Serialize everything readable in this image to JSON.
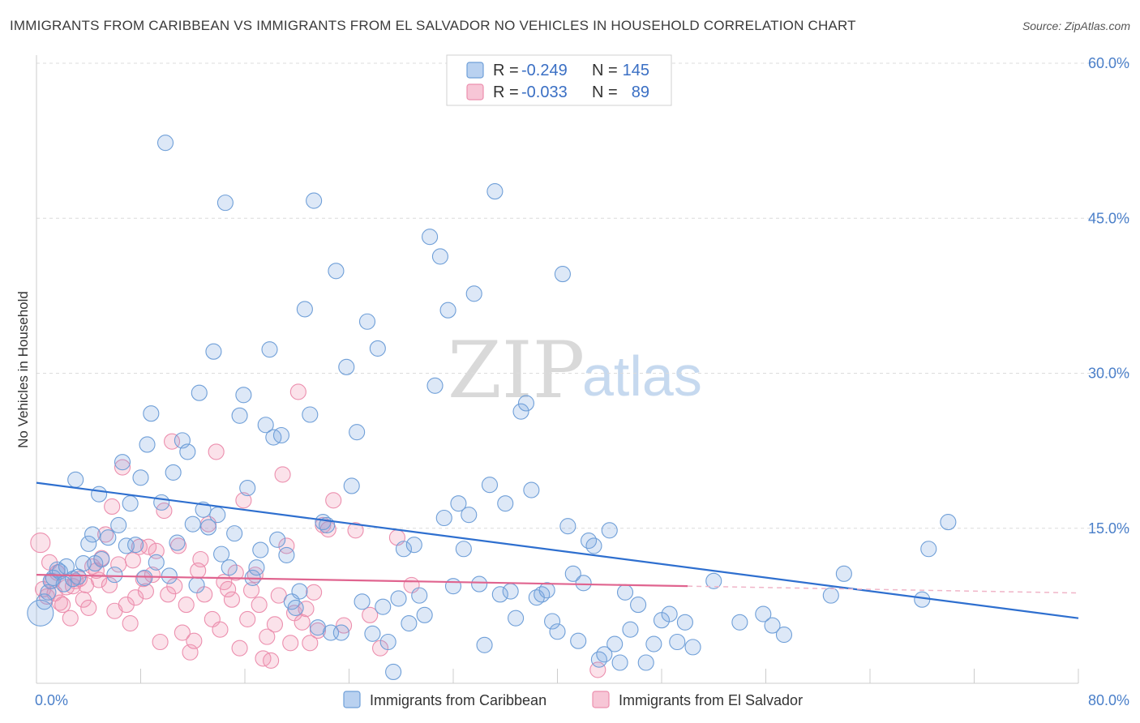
{
  "header": {
    "title": "IMMIGRANTS FROM CARIBBEAN VS IMMIGRANTS FROM EL SALVADOR NO VEHICLES IN HOUSEHOLD CORRELATION CHART",
    "source": "Source: ZipAtlas.com"
  },
  "watermark": {
    "zip": "ZIP",
    "atlas": "atlas"
  },
  "colors": {
    "blue": "#6f9fd8",
    "blue_line": "#2e6fcf",
    "pink": "#ec8fae",
    "pink_line": "#e0648f",
    "axis_text": "#4a7fc9"
  },
  "legend": {
    "rows": [
      {
        "r_label": "R =",
        "r_value": "-0.249",
        "n_label": "N =",
        "n_value": "145"
      },
      {
        "r_label": "R =",
        "r_value": "-0.033",
        "n_label": "N =",
        "n_value": "89"
      }
    ]
  },
  "chart_data": {
    "type": "scatter",
    "xlabel": "",
    "ylabel": "No Vehicles in Household",
    "xlim": [
      0,
      80
    ],
    "ylim": [
      0,
      60
    ],
    "x_ticks": [
      "0.0%",
      "80.0%"
    ],
    "y_ticks": [
      "15.0%",
      "30.0%",
      "45.0%",
      "60.0%"
    ],
    "grid": true,
    "legend_position": "bottom",
    "series": [
      {
        "name": "Immigrants from Caribbean",
        "color": "#6f9fd8",
        "trend": {
          "x": [
            0,
            80
          ],
          "y": [
            19.4,
            6.3
          ]
        },
        "points": [
          [
            0.3,
            6.8
          ],
          [
            0.6,
            7.9
          ],
          [
            0.9,
            8.8
          ],
          [
            1.1,
            9.9
          ],
          [
            1.3,
            10.2
          ],
          [
            1.6,
            11.0
          ],
          [
            1.8,
            10.8
          ],
          [
            2.1,
            9.6
          ],
          [
            2.3,
            11.3
          ],
          [
            2.8,
            10.1
          ],
          [
            3.0,
            19.7
          ],
          [
            3.2,
            10.3
          ],
          [
            3.6,
            11.6
          ],
          [
            4.0,
            13.5
          ],
          [
            4.3,
            14.4
          ],
          [
            4.5,
            11.6
          ],
          [
            4.8,
            18.3
          ],
          [
            5.0,
            12.0
          ],
          [
            5.5,
            14.1
          ],
          [
            6.0,
            10.5
          ],
          [
            6.3,
            15.3
          ],
          [
            6.6,
            21.4
          ],
          [
            6.9,
            13.3
          ],
          [
            7.2,
            17.4
          ],
          [
            7.6,
            13.4
          ],
          [
            8.0,
            19.9
          ],
          [
            8.3,
            10.2
          ],
          [
            8.5,
            23.1
          ],
          [
            8.8,
            26.1
          ],
          [
            9.2,
            11.7
          ],
          [
            9.6,
            17.5
          ],
          [
            9.9,
            52.3
          ],
          [
            10.2,
            10.4
          ],
          [
            10.5,
            20.4
          ],
          [
            10.8,
            13.6
          ],
          [
            11.2,
            23.5
          ],
          [
            11.6,
            22.4
          ],
          [
            12.0,
            15.4
          ],
          [
            12.3,
            9.5
          ],
          [
            12.5,
            28.1
          ],
          [
            12.8,
            16.8
          ],
          [
            13.2,
            15.1
          ],
          [
            13.6,
            32.1
          ],
          [
            13.9,
            16.3
          ],
          [
            14.2,
            12.5
          ],
          [
            14.5,
            46.5
          ],
          [
            14.8,
            11.2
          ],
          [
            15.2,
            14.5
          ],
          [
            15.6,
            25.9
          ],
          [
            15.9,
            27.9
          ],
          [
            16.2,
            18.9
          ],
          [
            16.6,
            10.2
          ],
          [
            16.9,
            11.2
          ],
          [
            17.2,
            12.9
          ],
          [
            17.6,
            25.0
          ],
          [
            17.9,
            32.3
          ],
          [
            18.2,
            23.8
          ],
          [
            18.5,
            13.9
          ],
          [
            18.8,
            24.0
          ],
          [
            19.2,
            12.4
          ],
          [
            19.6,
            7.9
          ],
          [
            19.9,
            7.3
          ],
          [
            20.2,
            8.9
          ],
          [
            20.6,
            36.2
          ],
          [
            21.0,
            26.0
          ],
          [
            21.3,
            46.7
          ],
          [
            21.6,
            5.4
          ],
          [
            22.0,
            15.6
          ],
          [
            22.3,
            15.3
          ],
          [
            22.6,
            4.9
          ],
          [
            23.0,
            39.9
          ],
          [
            23.4,
            4.9
          ],
          [
            23.8,
            30.6
          ],
          [
            24.2,
            19.1
          ],
          [
            24.6,
            24.3
          ],
          [
            25.0,
            7.9
          ],
          [
            25.4,
            35.0
          ],
          [
            25.8,
            4.8
          ],
          [
            26.2,
            32.4
          ],
          [
            26.6,
            7.4
          ],
          [
            27.0,
            4.0
          ],
          [
            27.4,
            1.1
          ],
          [
            27.8,
            8.2
          ],
          [
            28.2,
            13.0
          ],
          [
            28.6,
            5.8
          ],
          [
            29.0,
            13.4
          ],
          [
            29.4,
            8.5
          ],
          [
            29.8,
            6.6
          ],
          [
            30.2,
            43.2
          ],
          [
            30.6,
            28.8
          ],
          [
            31.0,
            41.3
          ],
          [
            31.3,
            16.0
          ],
          [
            31.6,
            36.1
          ],
          [
            32.0,
            9.4
          ],
          [
            32.4,
            17.4
          ],
          [
            32.8,
            13.0
          ],
          [
            33.2,
            16.3
          ],
          [
            33.6,
            37.7
          ],
          [
            34.0,
            9.6
          ],
          [
            34.4,
            3.7
          ],
          [
            34.8,
            19.2
          ],
          [
            35.2,
            47.6
          ],
          [
            35.6,
            8.6
          ],
          [
            36.0,
            17.4
          ],
          [
            36.4,
            8.9
          ],
          [
            36.8,
            6.3
          ],
          [
            37.2,
            26.3
          ],
          [
            37.6,
            27.1
          ],
          [
            38.0,
            18.7
          ],
          [
            38.4,
            8.3
          ],
          [
            38.8,
            8.6
          ],
          [
            39.2,
            9.0
          ],
          [
            39.6,
            6.0
          ],
          [
            40.0,
            5.0
          ],
          [
            40.4,
            39.6
          ],
          [
            40.8,
            15.2
          ],
          [
            41.2,
            10.6
          ],
          [
            41.6,
            4.1
          ],
          [
            42.0,
            9.7
          ],
          [
            42.4,
            13.8
          ],
          [
            42.8,
            13.3
          ],
          [
            43.2,
            2.3
          ],
          [
            43.6,
            2.8
          ],
          [
            44.0,
            14.8
          ],
          [
            44.4,
            3.8
          ],
          [
            44.8,
            2.0
          ],
          [
            45.2,
            8.8
          ],
          [
            45.6,
            5.2
          ],
          [
            46.2,
            7.6
          ],
          [
            46.8,
            2.0
          ],
          [
            47.4,
            3.8
          ],
          [
            48.0,
            6.1
          ],
          [
            48.6,
            6.7
          ],
          [
            49.2,
            4.0
          ],
          [
            49.8,
            5.9
          ],
          [
            50.4,
            3.5
          ],
          [
            52.0,
            9.9
          ],
          [
            54.0,
            5.9
          ],
          [
            55.8,
            6.7
          ],
          [
            56.5,
            5.6
          ],
          [
            57.4,
            4.7
          ],
          [
            61.0,
            8.5
          ],
          [
            62.0,
            10.6
          ],
          [
            68.0,
            8.1
          ],
          [
            68.5,
            13.0
          ],
          [
            70.0,
            15.6
          ]
        ]
      },
      {
        "name": "Immigrants from El Salvador",
        "color": "#ec8fae",
        "trend": {
          "x": [
            0,
            50
          ],
          "y": [
            10.5,
            9.4
          ]
        },
        "points": [
          [
            0.3,
            13.6
          ],
          [
            0.5,
            9.1
          ],
          [
            0.8,
            8.4
          ],
          [
            1.0,
            11.7
          ],
          [
            1.2,
            9.9
          ],
          [
            1.4,
            8.7
          ],
          [
            1.6,
            10.7
          ],
          [
            1.8,
            7.8
          ],
          [
            2.0,
            7.6
          ],
          [
            2.3,
            9.3
          ],
          [
            2.6,
            6.3
          ],
          [
            2.8,
            9.4
          ],
          [
            3.0,
            9.9
          ],
          [
            3.3,
            10.1
          ],
          [
            3.6,
            8.1
          ],
          [
            3.8,
            9.5
          ],
          [
            4.0,
            7.3
          ],
          [
            4.3,
            11.3
          ],
          [
            4.6,
            10.9
          ],
          [
            4.8,
            10.0
          ],
          [
            5.0,
            12.1
          ],
          [
            5.3,
            14.4
          ],
          [
            5.6,
            9.5
          ],
          [
            5.8,
            17.1
          ],
          [
            6.0,
            7.0
          ],
          [
            6.3,
            11.5
          ],
          [
            6.6,
            20.9
          ],
          [
            6.9,
            7.6
          ],
          [
            7.2,
            5.8
          ],
          [
            7.4,
            11.9
          ],
          [
            7.6,
            8.3
          ],
          [
            7.9,
            13.2
          ],
          [
            8.2,
            10.1
          ],
          [
            8.4,
            8.9
          ],
          [
            8.6,
            13.2
          ],
          [
            8.9,
            10.5
          ],
          [
            9.2,
            12.8
          ],
          [
            9.5,
            4.0
          ],
          [
            9.8,
            16.7
          ],
          [
            10.1,
            8.6
          ],
          [
            10.4,
            23.4
          ],
          [
            10.6,
            9.4
          ],
          [
            10.9,
            13.3
          ],
          [
            11.2,
            4.9
          ],
          [
            11.5,
            7.6
          ],
          [
            11.8,
            3.0
          ],
          [
            12.1,
            4.1
          ],
          [
            12.4,
            10.9
          ],
          [
            12.6,
            12.0
          ],
          [
            12.9,
            8.6
          ],
          [
            13.2,
            15.4
          ],
          [
            13.5,
            6.2
          ],
          [
            13.8,
            22.4
          ],
          [
            14.1,
            5.2
          ],
          [
            14.4,
            9.8
          ],
          [
            14.7,
            9.1
          ],
          [
            15.0,
            8.1
          ],
          [
            15.3,
            10.7
          ],
          [
            15.6,
            3.4
          ],
          [
            15.9,
            17.7
          ],
          [
            16.2,
            6.2
          ],
          [
            16.5,
            9.0
          ],
          [
            16.8,
            10.5
          ],
          [
            17.1,
            7.6
          ],
          [
            17.4,
            2.4
          ],
          [
            17.7,
            4.5
          ],
          [
            18.0,
            2.2
          ],
          [
            18.3,
            5.7
          ],
          [
            18.6,
            8.5
          ],
          [
            18.9,
            20.2
          ],
          [
            19.2,
            13.3
          ],
          [
            19.5,
            3.9
          ],
          [
            19.8,
            6.8
          ],
          [
            20.1,
            28.2
          ],
          [
            20.4,
            5.9
          ],
          [
            20.7,
            7.2
          ],
          [
            21.0,
            3.9
          ],
          [
            21.3,
            8.8
          ],
          [
            21.6,
            5.1
          ],
          [
            22.0,
            15.3
          ],
          [
            22.4,
            14.9
          ],
          [
            22.8,
            17.7
          ],
          [
            23.6,
            5.6
          ],
          [
            24.5,
            14.8
          ],
          [
            25.6,
            6.6
          ],
          [
            26.4,
            3.4
          ],
          [
            27.7,
            14.1
          ],
          [
            28.8,
            9.5
          ],
          [
            43.1,
            1.3
          ]
        ]
      }
    ]
  },
  "bottom_legend": {
    "items": [
      {
        "label": "Immigrants from Caribbean"
      },
      {
        "label": "Immigrants from El Salvador"
      }
    ]
  }
}
